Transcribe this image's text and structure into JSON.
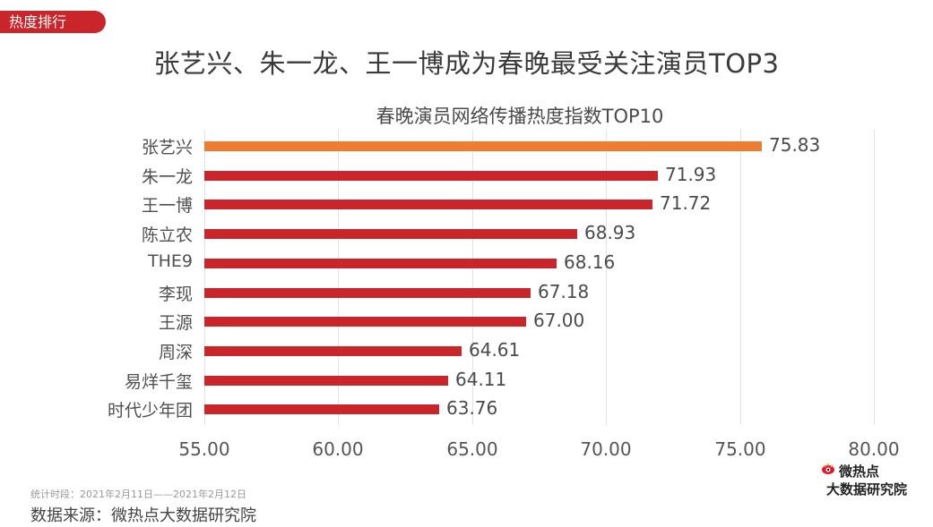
{
  "tag": {
    "label": "热度排行",
    "color": "#c9252b"
  },
  "title": "张艺兴、朱一龙、王一博成为春晚最受关注演员TOP3",
  "chart_data": {
    "type": "bar",
    "orientation": "horizontal",
    "title": "春晚演员网络传播热度指数TOP10",
    "categories": [
      "张艺兴",
      "朱一龙",
      "王一博",
      "陈立农",
      "THE9",
      "李现",
      "王源",
      "周深",
      "易烊千玺",
      "时代少年团"
    ],
    "values": [
      75.83,
      71.93,
      71.72,
      68.93,
      68.16,
      67.18,
      67.0,
      64.61,
      64.11,
      63.76
    ],
    "value_labels": [
      "75.83",
      "71.93",
      "71.72",
      "68.93",
      "68.16",
      "67.18",
      "67.00",
      "64.61",
      "64.11",
      "63.76"
    ],
    "xlabel": "",
    "ylabel": "",
    "xlim": [
      55,
      80
    ],
    "xticks": [
      "55.00",
      "60.00",
      "65.00",
      "70.00",
      "75.00",
      "80.00"
    ],
    "grid": true,
    "legend": null,
    "colors": {
      "highlight": "#ed7d31",
      "default": "#c9252b"
    }
  },
  "footer": {
    "period": "统计时段：2021年2月11日——2021年2月12日",
    "source": "数据来源：微热点大数据研究院"
  },
  "logo": {
    "line1": "微热点",
    "line2": "大数据研究院",
    "icon": "weibo-eye-icon"
  }
}
